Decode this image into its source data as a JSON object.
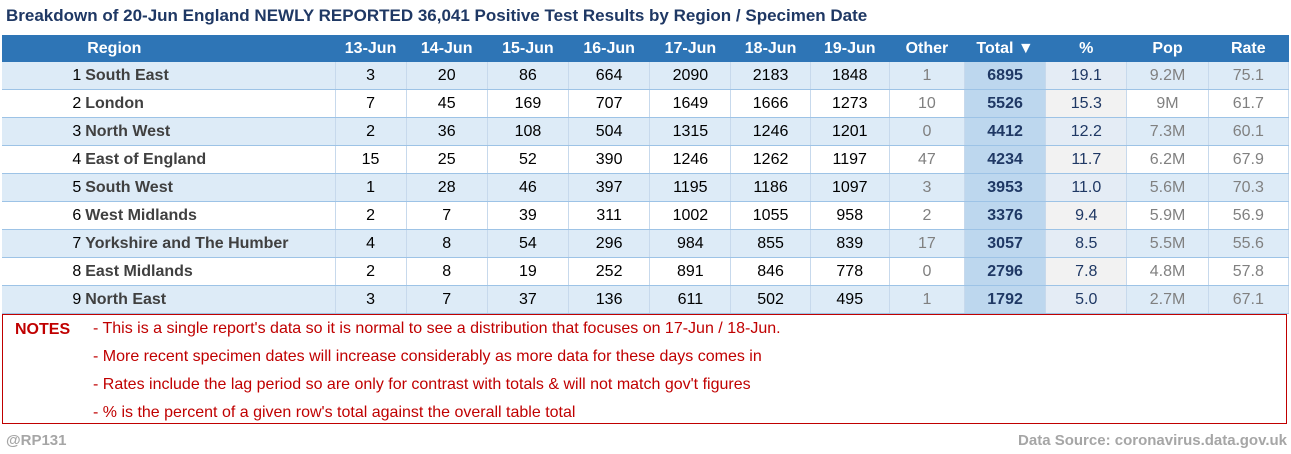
{
  "title": "Breakdown of 20-Jun England NEWLY REPORTED 36,041 Positive Test Results by Region / Specimen Date",
  "headers": [
    "",
    "Region",
    "13-Jun",
    "14-Jun",
    "15-Jun",
    "16-Jun",
    "17-Jun",
    "18-Jun",
    "19-Jun",
    "Other",
    "Total ▼",
    "%",
    "Pop",
    "Rate"
  ],
  "rows": [
    [
      "1",
      "South East",
      "3",
      "20",
      "86",
      "664",
      "2090",
      "2183",
      "1848",
      "1",
      "6895",
      "19.1",
      "9.2M",
      "75.1"
    ],
    [
      "2",
      "London",
      "7",
      "45",
      "169",
      "707",
      "1649",
      "1666",
      "1273",
      "10",
      "5526",
      "15.3",
      "9M",
      "61.7"
    ],
    [
      "3",
      "North West",
      "2",
      "36",
      "108",
      "504",
      "1315",
      "1246",
      "1201",
      "0",
      "4412",
      "12.2",
      "7.3M",
      "60.1"
    ],
    [
      "4",
      "East of England",
      "15",
      "25",
      "52",
      "390",
      "1246",
      "1262",
      "1197",
      "47",
      "4234",
      "11.7",
      "6.2M",
      "67.9"
    ],
    [
      "5",
      "South West",
      "1",
      "28",
      "46",
      "397",
      "1195",
      "1186",
      "1097",
      "3",
      "3953",
      "11.0",
      "5.6M",
      "70.3"
    ],
    [
      "6",
      "West Midlands",
      "2",
      "7",
      "39",
      "311",
      "1002",
      "1055",
      "958",
      "2",
      "3376",
      "9.4",
      "5.9M",
      "56.9"
    ],
    [
      "7",
      "Yorkshire and The Humber",
      "4",
      "8",
      "54",
      "296",
      "984",
      "855",
      "839",
      "17",
      "3057",
      "8.5",
      "5.5M",
      "55.6"
    ],
    [
      "8",
      "East Midlands",
      "2",
      "8",
      "19",
      "252",
      "891",
      "846",
      "778",
      "0",
      "2796",
      "7.8",
      "4.8M",
      "57.8"
    ],
    [
      "9",
      "North East",
      "3",
      "7",
      "37",
      "136",
      "611",
      "502",
      "495",
      "1",
      "1792",
      "5.0",
      "2.7M",
      "67.1"
    ]
  ],
  "notes": {
    "label": "NOTES",
    "lines": [
      "- This is a single report's data so it is normal to see a distribution that focuses on 17-Jun / 18-Jun.",
      "- More recent specimen dates will increase considerably as more data for these days comes in",
      "- Rates include the lag period so are only for contrast with totals & will not match gov't figures",
      "- % is the percent of a given row's total against the overall table total"
    ]
  },
  "footer": {
    "author": "@RP131",
    "source": "Data Source: coronavirus.data.gov.uk"
  }
}
